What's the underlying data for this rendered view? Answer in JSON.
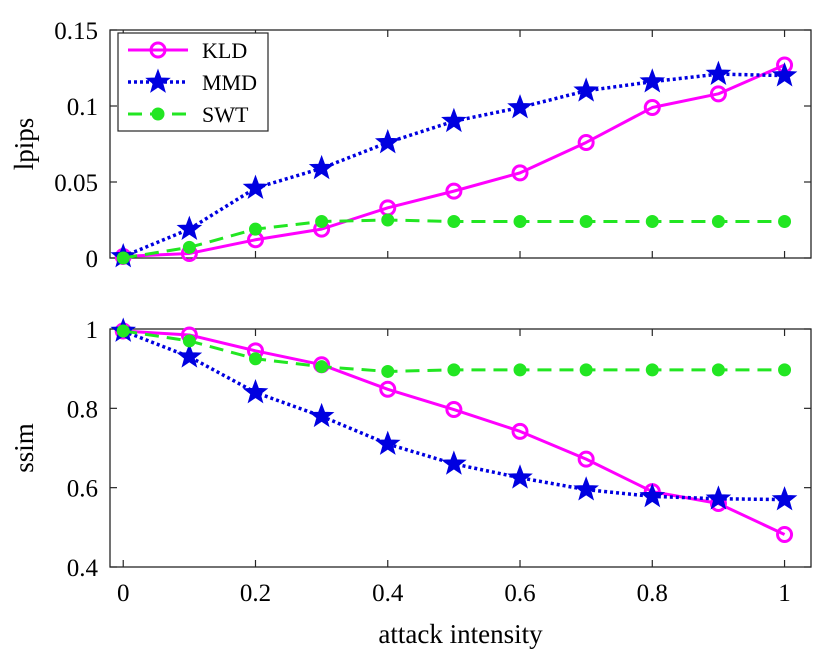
{
  "chart_data": [
    {
      "type": "line",
      "name": "lpips-panel",
      "ylabel": "lpips",
      "xlabel": "",
      "ylim": [
        0,
        0.15
      ],
      "yticks": [
        0,
        0.05,
        0.1,
        0.15
      ],
      "ytick_labels": [
        "0",
        "0.05",
        "0.1",
        "0.15"
      ],
      "xlim": [
        -0.02,
        1.04
      ],
      "x": [
        0,
        0.1,
        0.2,
        0.3,
        0.4,
        0.5,
        0.6,
        0.7,
        0.8,
        0.9,
        1.0
      ],
      "legend": {
        "placement": "top-left",
        "entries": [
          "KLD",
          "MMD",
          "SWT"
        ]
      },
      "series": [
        {
          "name": "KLD",
          "color": "#ff00ff",
          "style": "solid",
          "marker": "circle",
          "values": [
            0.001,
            0.003,
            0.012,
            0.019,
            0.033,
            0.044,
            0.056,
            0.076,
            0.099,
            0.108,
            0.127
          ]
        },
        {
          "name": "MMD",
          "color": "#0000e0",
          "style": "dotted",
          "marker": "star",
          "values": [
            0.001,
            0.019,
            0.046,
            0.059,
            0.076,
            0.09,
            0.099,
            0.11,
            0.116,
            0.121,
            0.12
          ]
        },
        {
          "name": "SWT",
          "color": "#22e622",
          "style": "dashed",
          "marker": "dot",
          "values": [
            0.0,
            0.007,
            0.019,
            0.024,
            0.025,
            0.024,
            0.024,
            0.024,
            0.024,
            0.024,
            0.024
          ]
        }
      ]
    },
    {
      "type": "line",
      "name": "ssim-panel",
      "ylabel": "ssim",
      "xlabel": "attack intensity",
      "ylim": [
        0.4,
        1.0
      ],
      "yticks": [
        0.4,
        0.6,
        0.8,
        1.0
      ],
      "ytick_labels": [
        "0.4",
        "0.6",
        "0.8",
        "1"
      ],
      "xlim": [
        -0.02,
        1.04
      ],
      "xticks": [
        0,
        0.2,
        0.4,
        0.6,
        0.8,
        1.0
      ],
      "xtick_labels": [
        "0",
        "0.2",
        "0.4",
        "0.6",
        "0.8",
        "1"
      ],
      "x": [
        0,
        0.1,
        0.2,
        0.3,
        0.4,
        0.5,
        0.6,
        0.7,
        0.8,
        0.9,
        1.0
      ],
      "series": [
        {
          "name": "KLD",
          "color": "#ff00ff",
          "style": "solid",
          "marker": "circle",
          "values": [
            0.995,
            0.985,
            0.945,
            0.91,
            0.848,
            0.797,
            0.742,
            0.672,
            0.59,
            0.56,
            0.482
          ]
        },
        {
          "name": "MMD",
          "color": "#0000e0",
          "style": "dotted",
          "marker": "star",
          "values": [
            0.995,
            0.93,
            0.84,
            0.78,
            0.71,
            0.66,
            0.625,
            0.595,
            0.578,
            0.572,
            0.57
          ]
        },
        {
          "name": "SWT",
          "color": "#22e622",
          "style": "dashed",
          "marker": "dot",
          "values": [
            0.995,
            0.97,
            0.925,
            0.905,
            0.893,
            0.897,
            0.897,
            0.897,
            0.897,
            0.897,
            0.897
          ]
        }
      ]
    }
  ]
}
